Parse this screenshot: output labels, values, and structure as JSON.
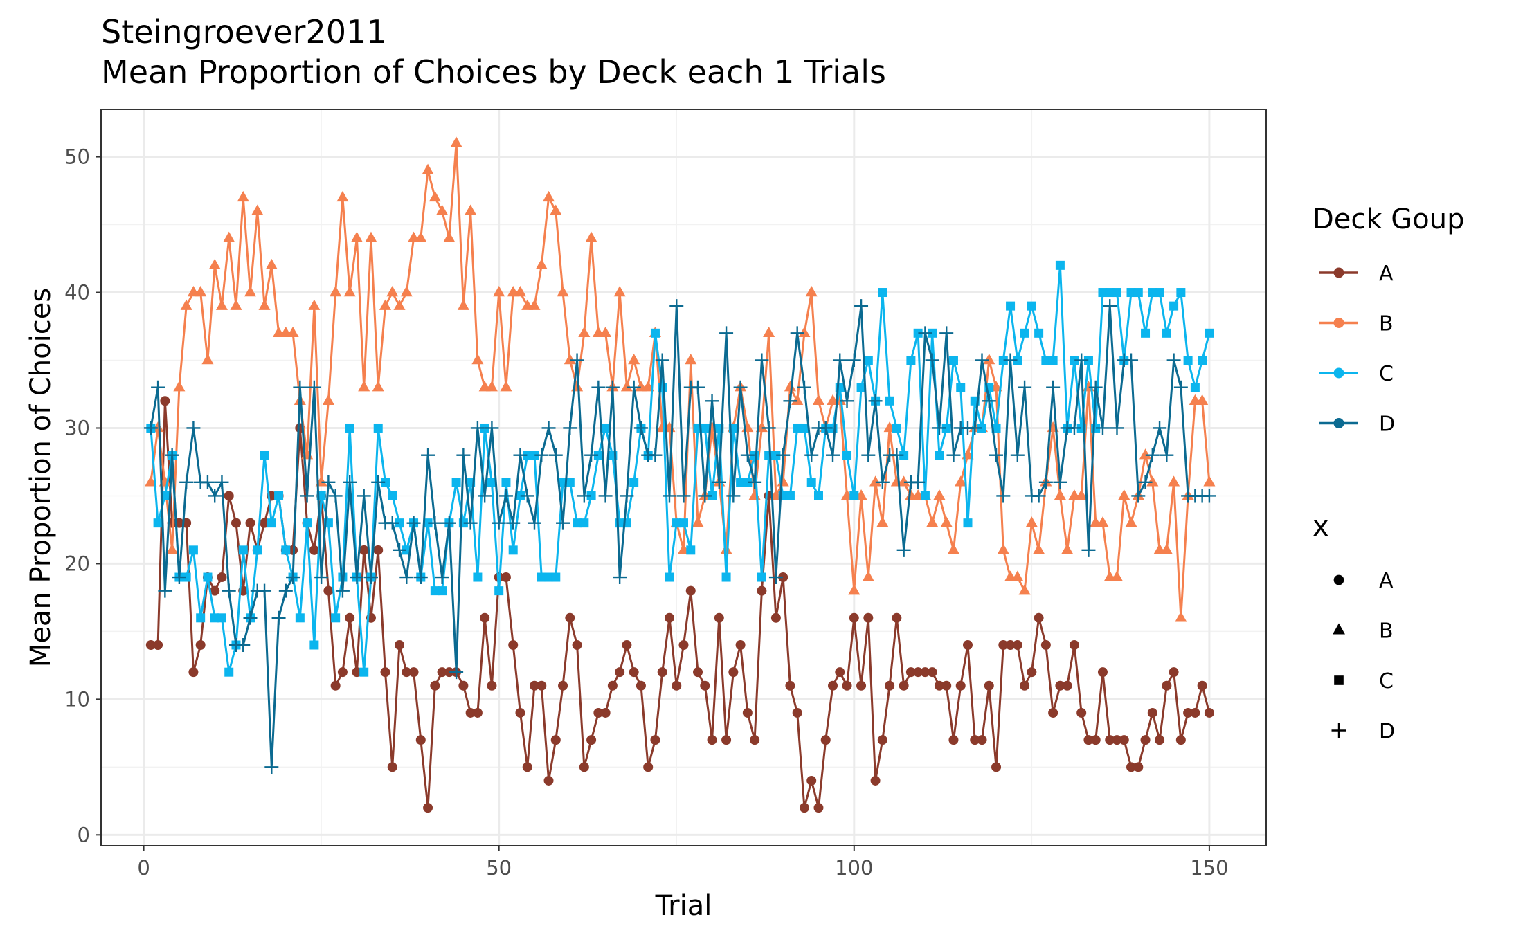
{
  "chart_data": {
    "type": "line",
    "title": "Steingroever2011",
    "subtitle": "Mean Proportion of Choices by Deck each 1 Trials",
    "xlabel": "Trial",
    "ylabel": "Mean Proportion of Choices",
    "xlim": [
      -6,
      158
    ],
    "ylim": [
      -0.8,
      53.5
    ],
    "x_ticks": [
      0,
      50,
      100,
      150
    ],
    "y_ticks": [
      0,
      10,
      20,
      30,
      40,
      50
    ],
    "x_tick_labels": [
      "0",
      "50",
      "100",
      "150"
    ],
    "y_tick_labels": [
      "0",
      "10",
      "20",
      "30",
      "40",
      "50"
    ],
    "grid": true,
    "legend_placement": "right",
    "legend_color": {
      "title": "Deck Goup",
      "entries": [
        {
          "label": "A",
          "color": "#8B3A2B"
        },
        {
          "label": "B",
          "color": "#F5804E"
        },
        {
          "label": "C",
          "color": "#0BB5EE"
        },
        {
          "label": "D",
          "color": "#0B6A91"
        }
      ]
    },
    "legend_shape": {
      "title": "x",
      "entries": [
        {
          "label": "A",
          "shape": "circle"
        },
        {
          "label": "B",
          "shape": "triangle"
        },
        {
          "label": "C",
          "shape": "square"
        },
        {
          "label": "D",
          "shape": "plus"
        }
      ]
    },
    "x": [
      1,
      2,
      3,
      4,
      5,
      6,
      7,
      8,
      9,
      10,
      11,
      12,
      13,
      14,
      15,
      16,
      17,
      18,
      19,
      20,
      21,
      22,
      23,
      24,
      25,
      26,
      27,
      28,
      29,
      30,
      31,
      32,
      33,
      34,
      35,
      36,
      37,
      38,
      39,
      40,
      41,
      42,
      43,
      44,
      45,
      46,
      47,
      48,
      49,
      50,
      51,
      52,
      53,
      54,
      55,
      56,
      57,
      58,
      59,
      60,
      61,
      62,
      63,
      64,
      65,
      66,
      67,
      68,
      69,
      70,
      71,
      72,
      73,
      74,
      75,
      76,
      77,
      78,
      79,
      80,
      81,
      82,
      83,
      84,
      85,
      86,
      87,
      88,
      89,
      90,
      91,
      92,
      93,
      94,
      95,
      96,
      97,
      98,
      99,
      100,
      101,
      102,
      103,
      104,
      105,
      106,
      107,
      108,
      109,
      110,
      111,
      112,
      113,
      114,
      115,
      116,
      117,
      118,
      119,
      120,
      121,
      122,
      123,
      124,
      125,
      126,
      127,
      128,
      129,
      130,
      131,
      132,
      133,
      134,
      135,
      136,
      137,
      138,
      139,
      140,
      141,
      142,
      143,
      144,
      145,
      146,
      147,
      148,
      149,
      150
    ],
    "series": [
      {
        "name": "A",
        "color": "#8B3A2B",
        "shape": "circle",
        "values": [
          14,
          14,
          32,
          23,
          23,
          23,
          12,
          14,
          19,
          18,
          19,
          25,
          23,
          18,
          23,
          21,
          23,
          25,
          25,
          21,
          21,
          30,
          23,
          21,
          25,
          18,
          11,
          12,
          16,
          12,
          21,
          16,
          21,
          12,
          5,
          14,
          12,
          12,
          7,
          2,
          11,
          12,
          12,
          12,
          11,
          9,
          9,
          16,
          11,
          19,
          19,
          14,
          9,
          5,
          11,
          11,
          4,
          7,
          11,
          16,
          14,
          5,
          7,
          9,
          9,
          11,
          12,
          14,
          12,
          11,
          5,
          7,
          12,
          16,
          11,
          14,
          18,
          12,
          11,
          7,
          16,
          7,
          12,
          14,
          9,
          7,
          18,
          25,
          16,
          19,
          11,
          9,
          2,
          4,
          2,
          7,
          11,
          12,
          11,
          16,
          11,
          16,
          4,
          7,
          11,
          16,
          11,
          12,
          12,
          12,
          12,
          11,
          11,
          7,
          11,
          14,
          7,
          7,
          11,
          5,
          14,
          14,
          14,
          11,
          12,
          16,
          14,
          9,
          11,
          11,
          14,
          9,
          7,
          7,
          12,
          7,
          7,
          7,
          5,
          5,
          7,
          9,
          7,
          11,
          12,
          7,
          9,
          9,
          11,
          9
        ]
      },
      {
        "name": "B",
        "color": "#F5804E",
        "shape": "triangle",
        "values": [
          26,
          30,
          26,
          21,
          33,
          39,
          40,
          40,
          35,
          42,
          39,
          44,
          39,
          47,
          40,
          46,
          39,
          42,
          37,
          37,
          37,
          32,
          28,
          39,
          26,
          32,
          40,
          47,
          40,
          44,
          33,
          44,
          33,
          39,
          40,
          39,
          40,
          44,
          44,
          49,
          47,
          46,
          44,
          51,
          39,
          46,
          35,
          33,
          33,
          40,
          33,
          40,
          40,
          39,
          39,
          42,
          47,
          46,
          40,
          35,
          33,
          37,
          44,
          37,
          37,
          33,
          40,
          33,
          35,
          33,
          33,
          37,
          30,
          30,
          23,
          21,
          35,
          23,
          25,
          30,
          26,
          21,
          30,
          33,
          30,
          25,
          30,
          37,
          25,
          26,
          33,
          32,
          37,
          40,
          32,
          30,
          32,
          32,
          25,
          18,
          25,
          19,
          26,
          23,
          30,
          26,
          26,
          25,
          25,
          25,
          23,
          25,
          23,
          21,
          26,
          28,
          30,
          30,
          35,
          33,
          21,
          19,
          19,
          18,
          23,
          21,
          26,
          30,
          25,
          21,
          25,
          25,
          33,
          23,
          23,
          19,
          19,
          25,
          23,
          25,
          28,
          26,
          21,
          21,
          26,
          16,
          25,
          32,
          32,
          26
        ]
      },
      {
        "name": "C",
        "color": "#0BB5EE",
        "shape": "square",
        "values": [
          30,
          23,
          25,
          28,
          19,
          19,
          21,
          16,
          19,
          16,
          16,
          12,
          14,
          21,
          16,
          21,
          28,
          23,
          25,
          21,
          19,
          16,
          23,
          14,
          25,
          23,
          16,
          19,
          30,
          19,
          12,
          19,
          30,
          26,
          25,
          23,
          21,
          23,
          19,
          23,
          18,
          18,
          23,
          26,
          23,
          26,
          19,
          30,
          26,
          18,
          26,
          21,
          25,
          28,
          28,
          19,
          19,
          19,
          26,
          26,
          23,
          23,
          25,
          28,
          30,
          28,
          23,
          23,
          26,
          30,
          28,
          37,
          33,
          19,
          23,
          23,
          21,
          30,
          30,
          25,
          30,
          19,
          30,
          26,
          26,
          28,
          19,
          28,
          28,
          25,
          25,
          30,
          30,
          26,
          25,
          30,
          30,
          33,
          28,
          25,
          33,
          35,
          32,
          40,
          32,
          30,
          28,
          35,
          37,
          25,
          37,
          28,
          30,
          35,
          33,
          23,
          32,
          30,
          33,
          30,
          35,
          39,
          35,
          37,
          39,
          37,
          35,
          35,
          42,
          30,
          35,
          30,
          35,
          30,
          40,
          40,
          40,
          35,
          40,
          40,
          37,
          40,
          40,
          37,
          39,
          40,
          35,
          33,
          35,
          37
        ]
      },
      {
        "name": "D",
        "color": "#0B6A91",
        "shape": "plus",
        "values": [
          30,
          33,
          18,
          28,
          19,
          26,
          30,
          26,
          26,
          25,
          26,
          18,
          14,
          14,
          16,
          18,
          18,
          5,
          16,
          18,
          19,
          33,
          25,
          33,
          19,
          26,
          25,
          18,
          26,
          19,
          25,
          19,
          26,
          23,
          23,
          21,
          19,
          23,
          19,
          28,
          23,
          19,
          23,
          12,
          28,
          23,
          30,
          25,
          30,
          23,
          25,
          23,
          28,
          25,
          23,
          28,
          30,
          28,
          23,
          30,
          35,
          25,
          28,
          33,
          25,
          33,
          19,
          25,
          33,
          30,
          28,
          28,
          35,
          25,
          39,
          25,
          33,
          33,
          25,
          32,
          26,
          37,
          25,
          33,
          28,
          26,
          35,
          30,
          19,
          28,
          32,
          37,
          33,
          28,
          30,
          30,
          28,
          35,
          32,
          35,
          39,
          28,
          32,
          26,
          28,
          28,
          21,
          26,
          26,
          37,
          35,
          30,
          37,
          28,
          30,
          30,
          30,
          35,
          32,
          28,
          25,
          35,
          28,
          33,
          25,
          25,
          26,
          33,
          26,
          30,
          30,
          35,
          21,
          33,
          30,
          39,
          30,
          35,
          35,
          25,
          26,
          28,
          30,
          28,
          35,
          33,
          25,
          25,
          25,
          25
        ]
      }
    ]
  }
}
